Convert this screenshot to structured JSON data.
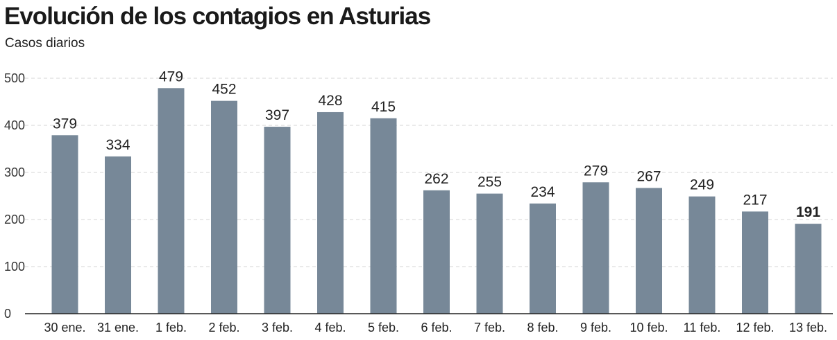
{
  "header": {
    "title": "Evolución de los contagios en Asturias",
    "subtitle": "Casos diarios"
  },
  "colors": {
    "bar": "#778898",
    "grid": "#d4d4d4",
    "axis": "#222222"
  },
  "chart_data": {
    "type": "bar",
    "title": "Evolución de los contagios en Asturias",
    "subtitle": "Casos diarios",
    "xlabel": "",
    "ylabel": "",
    "ylim": [
      0,
      500
    ],
    "yticks": [
      0,
      100,
      200,
      300,
      400,
      500
    ],
    "grid": true,
    "categories": [
      "30 ene.",
      "31 ene.",
      "1 feb.",
      "2 feb.",
      "3 feb.",
      "4 feb.",
      "5 feb.",
      "6 feb.",
      "7 feb.",
      "8 feb.",
      "9 feb.",
      "10 feb.",
      "11 feb.",
      "12 feb.",
      "13 feb."
    ],
    "values": [
      379,
      334,
      479,
      452,
      397,
      428,
      415,
      262,
      255,
      234,
      279,
      267,
      249,
      217,
      191
    ],
    "value_labels": [
      "379",
      "334",
      "479",
      "452",
      "397",
      "428",
      "415",
      "262",
      "255",
      "234",
      "279",
      "267",
      "249",
      "217",
      "191"
    ],
    "highlight_last": true
  }
}
